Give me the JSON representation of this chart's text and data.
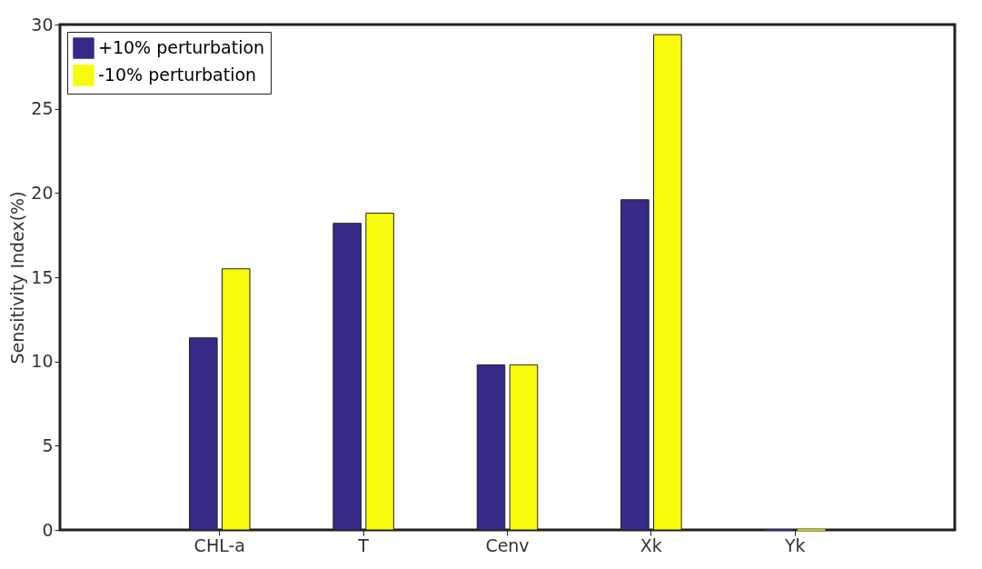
{
  "chart_data": {
    "type": "bar",
    "ylabel": "Sensitivity Index(%)",
    "categories": [
      "CHL-a",
      "T",
      "Cenv",
      "Xk",
      "Yk"
    ],
    "series": [
      {
        "name": "+10% perturbation",
        "color": "#352a87",
        "values": [
          11.4,
          18.2,
          9.8,
          19.6,
          0
        ]
      },
      {
        "name": "-10% perturbation",
        "color": "#f9fb0e",
        "values": [
          15.5,
          18.8,
          9.8,
          29.4,
          0
        ]
      }
    ],
    "ylim": [
      0,
      30
    ],
    "yticks": [
      0,
      5,
      10,
      15,
      20,
      25,
      30
    ],
    "grid": false,
    "legend": "top left"
  }
}
